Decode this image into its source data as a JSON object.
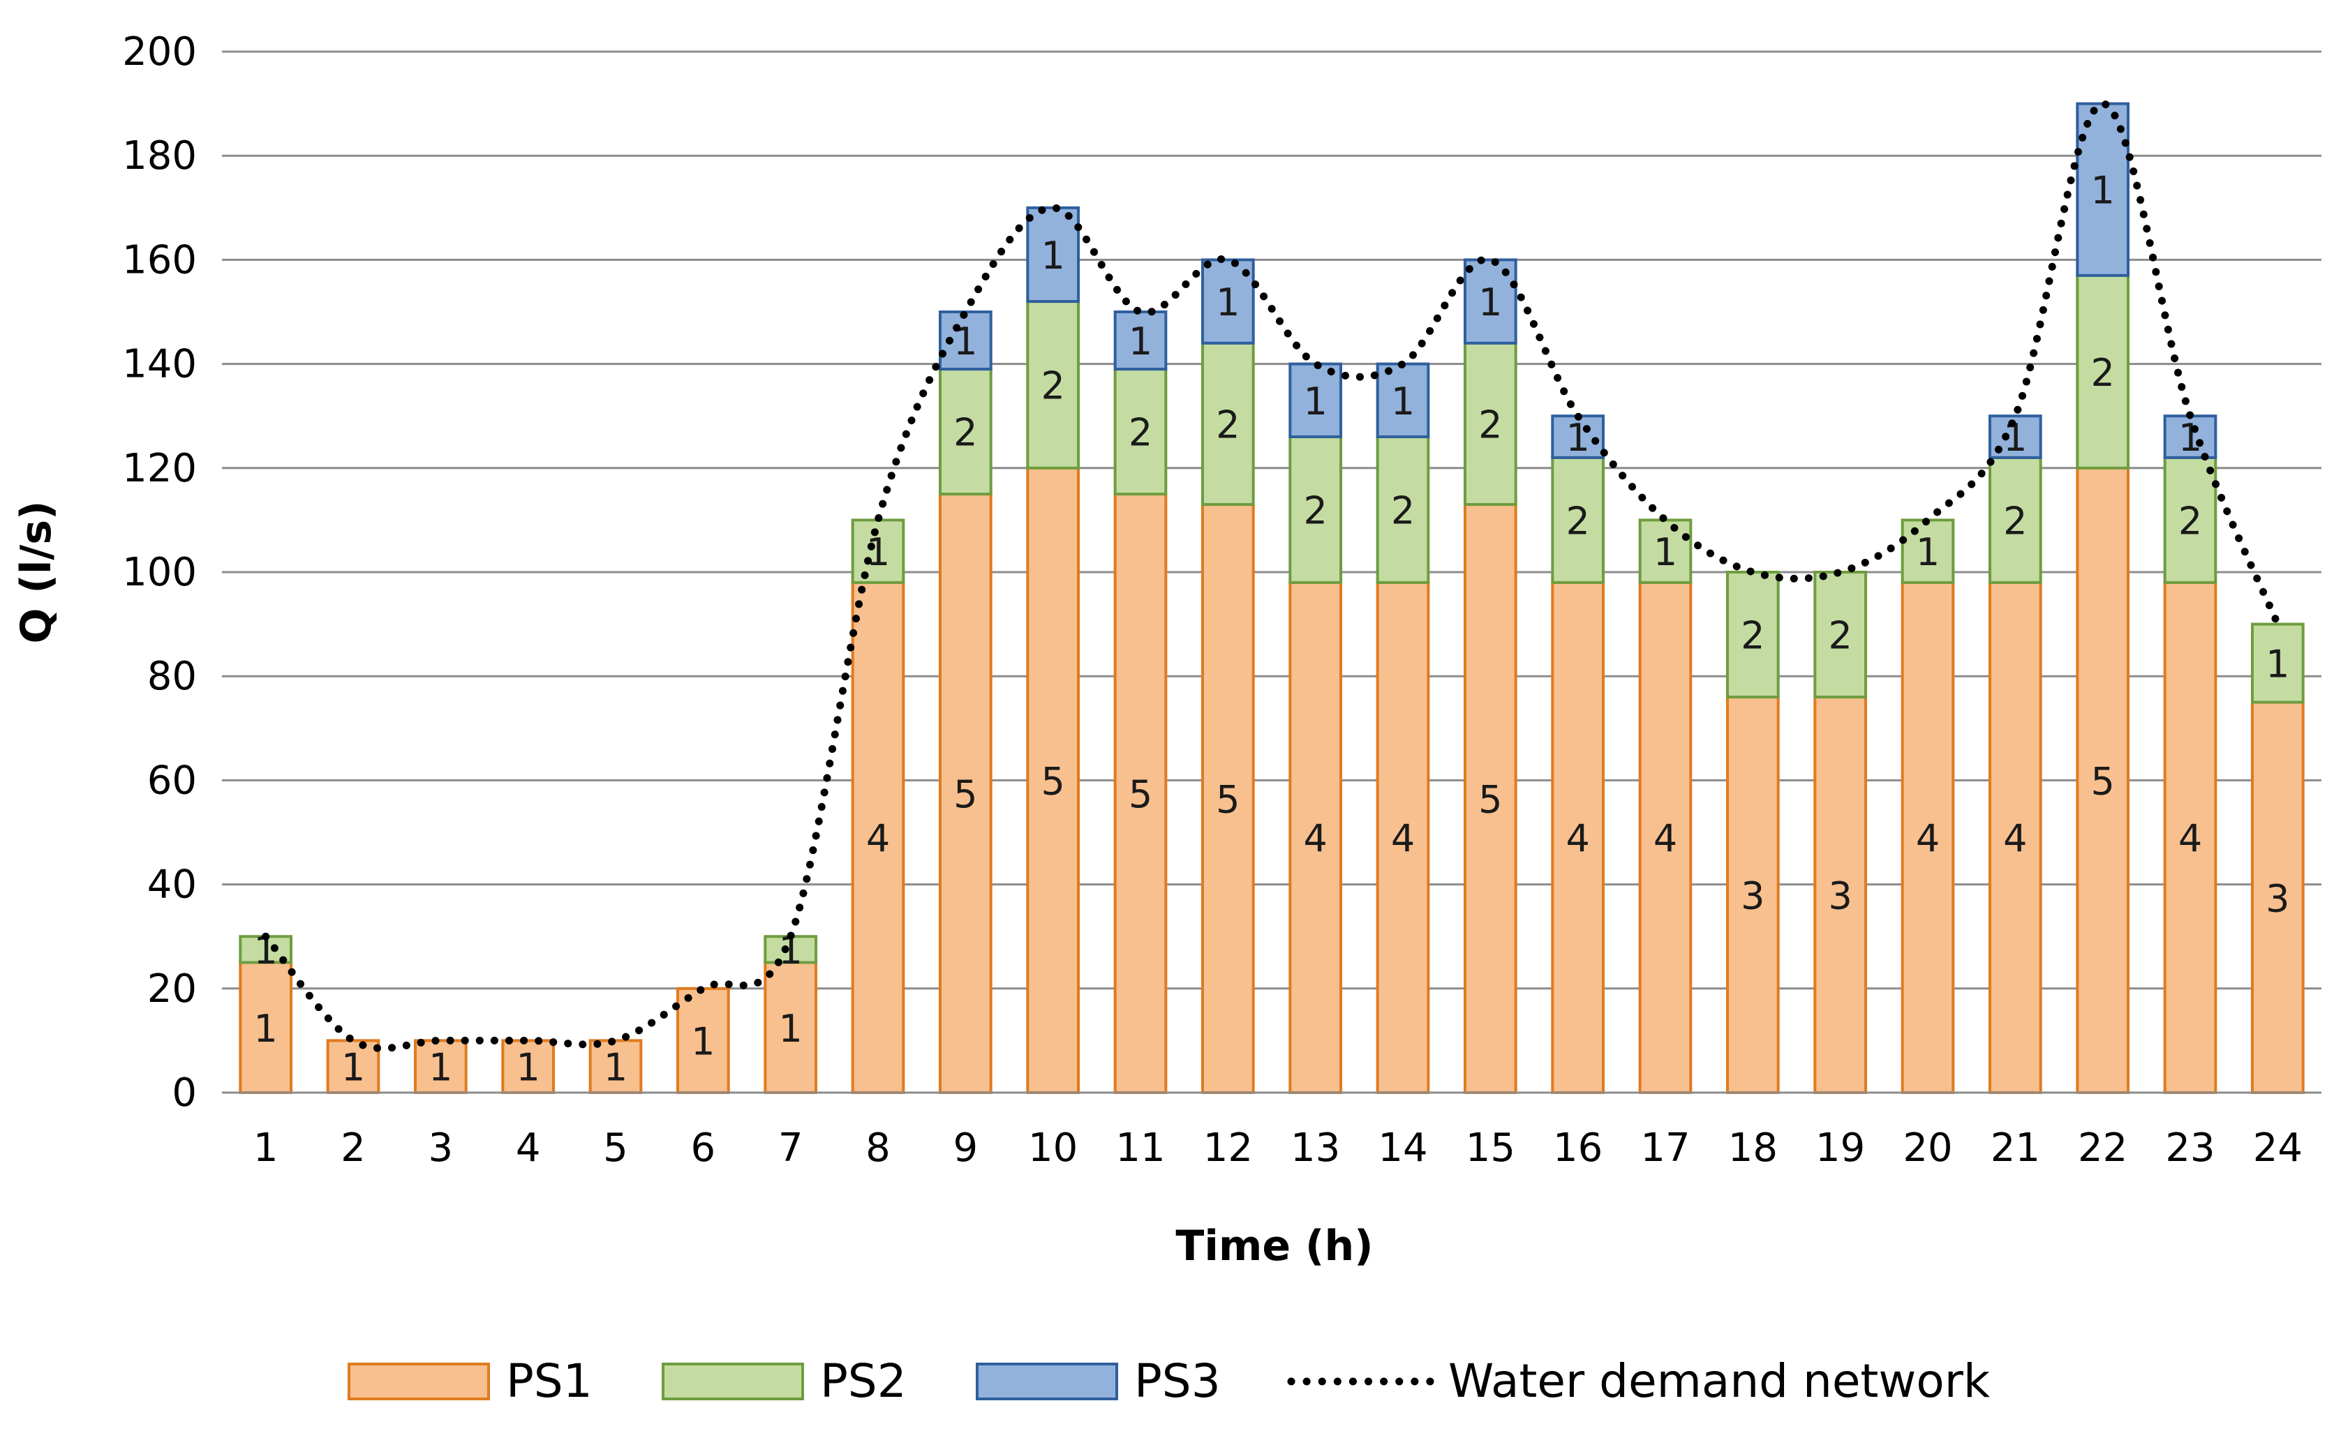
{
  "chart_data": {
    "type": "bar",
    "stacked": true,
    "title": "",
    "xlabel": "Time (h)",
    "ylabel": "Q (l/s)",
    "ylim": [
      0,
      200
    ],
    "yticks": [
      0,
      20,
      40,
      60,
      80,
      100,
      120,
      140,
      160,
      180,
      200
    ],
    "grid": true,
    "legend_position": "bottom",
    "categories": [
      "1",
      "2",
      "3",
      "4",
      "5",
      "6",
      "7",
      "8",
      "9",
      "10",
      "11",
      "12",
      "13",
      "14",
      "15",
      "16",
      "17",
      "18",
      "19",
      "20",
      "21",
      "22",
      "23",
      "24"
    ],
    "series": [
      {
        "name": "PS1",
        "kind": "bar",
        "color": "#F8C08F",
        "edge_color": "#E07B20",
        "values": [
          25,
          10,
          10,
          10,
          10,
          20,
          25,
          98,
          115,
          120,
          115,
          113,
          98,
          98,
          113,
          98,
          98,
          76,
          76,
          98,
          98,
          120,
          98,
          75
        ],
        "labels": [
          "1",
          "1",
          "1",
          "1",
          "1",
          "1",
          "1",
          "4",
          "5",
          "5",
          "5",
          "5",
          "4",
          "4",
          "5",
          "4",
          "4",
          "3",
          "3",
          "4",
          "4",
          "5",
          "4",
          "3"
        ]
      },
      {
        "name": "PS2",
        "kind": "bar",
        "color": "#C4DCA2",
        "edge_color": "#6E9D3F",
        "values": [
          5,
          0,
          0,
          0,
          0,
          0,
          5,
          12,
          24,
          32,
          24,
          31,
          28,
          28,
          31,
          24,
          12,
          24,
          24,
          12,
          24,
          37,
          24,
          15
        ],
        "labels": [
          "1",
          "",
          "",
          "",
          "",
          "",
          "1",
          "1",
          "2",
          "2",
          "2",
          "2",
          "2",
          "2",
          "2",
          "2",
          "1",
          "2",
          "2",
          "1",
          "2",
          "2",
          "2",
          "1"
        ]
      },
      {
        "name": "PS3",
        "kind": "bar",
        "color": "#92B2DC",
        "edge_color": "#2F5F9E",
        "values": [
          0,
          0,
          0,
          0,
          0,
          0,
          0,
          0,
          11,
          18,
          11,
          16,
          14,
          14,
          16,
          8,
          0,
          0,
          0,
          0,
          8,
          33,
          8,
          0
        ],
        "labels": [
          "",
          "",
          "",
          "",
          "",
          "",
          "",
          "",
          "1",
          "1",
          "1",
          "1",
          "1",
          "1",
          "1",
          "1",
          "",
          "",
          "",
          "",
          "1",
          "1",
          "1",
          ""
        ]
      },
      {
        "name": "Water demand network",
        "kind": "line",
        "style": "dotted",
        "color": "#000000",
        "values": [
          30,
          10,
          10,
          10,
          10,
          20,
          30,
          110,
          150,
          170,
          150,
          160,
          140,
          140,
          160,
          130,
          110,
          100,
          100,
          110,
          130,
          190,
          130,
          90
        ]
      }
    ]
  }
}
